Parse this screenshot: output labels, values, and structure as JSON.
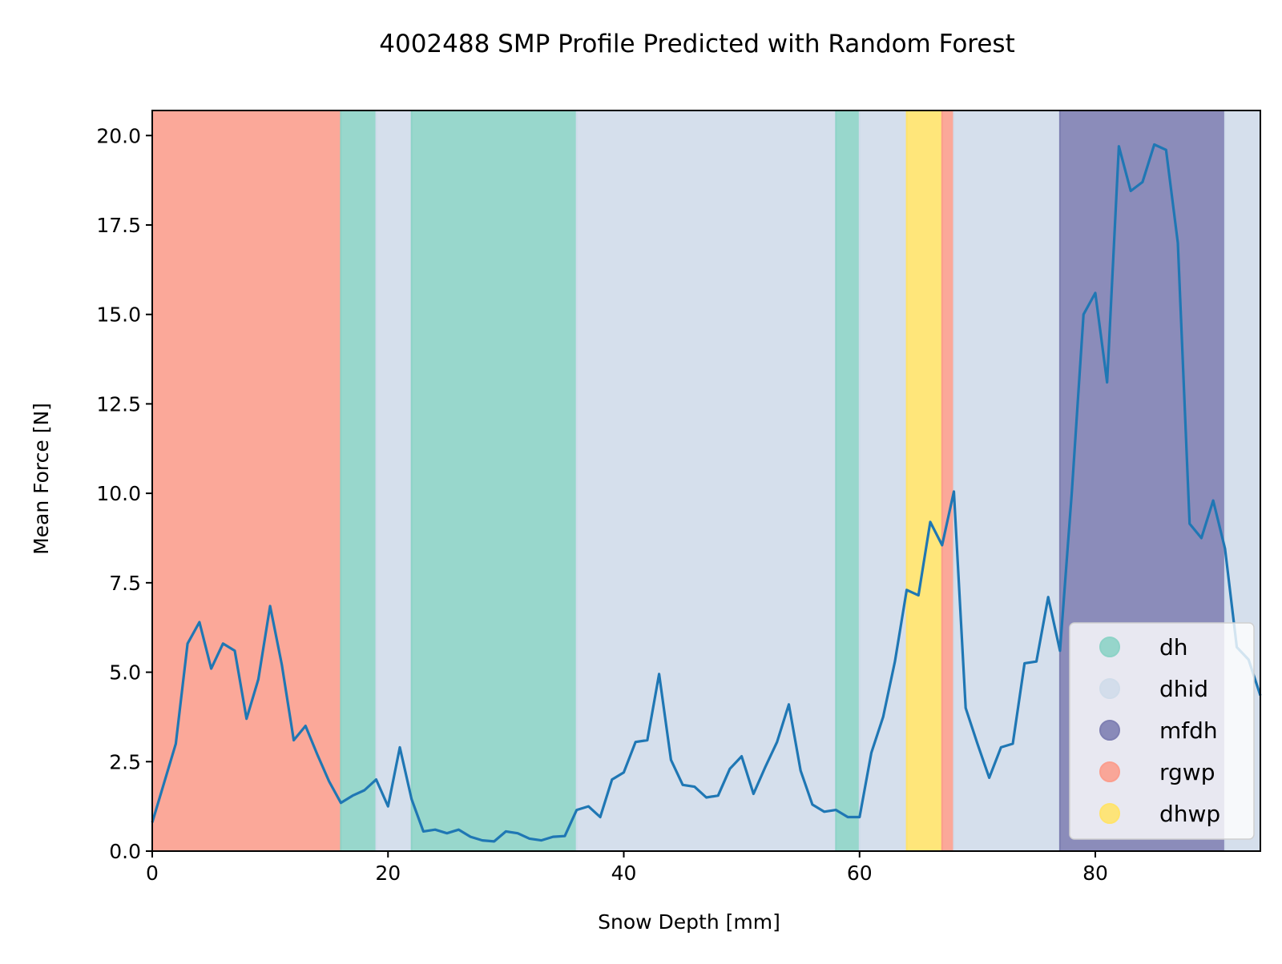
{
  "chart_data": {
    "type": "line",
    "title": "4002488 SMP Profile Predicted with Random Forest",
    "xlabel": "Snow Depth [mm]",
    "ylabel": "Mean Force [N]",
    "xlim": [
      0,
      94
    ],
    "ylim": [
      0,
      20.7
    ],
    "xticks": [
      0,
      20,
      40,
      60,
      80
    ],
    "yticks": [
      0.0,
      2.5,
      5.0,
      7.5,
      10.0,
      12.5,
      15.0,
      17.5,
      20.0
    ],
    "xtick_labels": [
      "0",
      "20",
      "40",
      "60",
      "80"
    ],
    "ytick_labels": [
      "0.0",
      "2.5",
      "5.0",
      "7.5",
      "10.0",
      "12.5",
      "15.0",
      "17.5",
      "20.0"
    ],
    "grid": false,
    "legend_position": "lower-right",
    "line_color": "#1f77b4",
    "classes": [
      {
        "name": "dh",
        "color": "#8dd3c7"
      },
      {
        "name": "dhid",
        "color": "#d0dcea"
      },
      {
        "name": "mfdh",
        "color": "#7e7fb2"
      },
      {
        "name": "rgwp",
        "color": "#fb9e8e"
      },
      {
        "name": "dhwp",
        "color": "#ffe36b"
      }
    ],
    "regions": [
      {
        "start": 0,
        "end": 16,
        "class": "rgwp"
      },
      {
        "start": 16,
        "end": 19,
        "class": "dh"
      },
      {
        "start": 19,
        "end": 22,
        "class": "dhid"
      },
      {
        "start": 22,
        "end": 36,
        "class": "dh"
      },
      {
        "start": 36,
        "end": 58,
        "class": "dhid"
      },
      {
        "start": 58,
        "end": 60,
        "class": "dh"
      },
      {
        "start": 60,
        "end": 64,
        "class": "dhid"
      },
      {
        "start": 64,
        "end": 67,
        "class": "dhwp"
      },
      {
        "start": 67,
        "end": 68,
        "class": "rgwp"
      },
      {
        "start": 68,
        "end": 77,
        "class": "dhid"
      },
      {
        "start": 77,
        "end": 91,
        "class": "mfdh"
      },
      {
        "start": 91,
        "end": 94,
        "class": "dhid"
      }
    ],
    "series": [
      {
        "x": [
          0,
          1,
          2,
          3,
          4,
          5,
          6,
          7,
          8,
          9,
          10,
          11,
          12,
          13,
          14,
          15,
          16,
          17,
          18,
          19,
          20,
          21,
          22,
          23,
          24,
          25,
          26,
          27,
          28,
          29,
          30,
          31,
          32,
          33,
          34,
          35,
          36,
          37,
          38,
          39,
          40,
          41,
          42,
          43,
          44,
          45,
          46,
          47,
          48,
          49,
          50,
          51,
          52,
          53,
          54,
          55,
          56,
          57,
          58,
          59,
          60,
          61,
          62,
          63,
          64,
          65,
          66,
          67,
          68,
          69,
          70,
          71,
          72,
          73,
          74,
          75,
          76,
          77,
          78,
          79,
          80,
          81,
          82,
          83,
          84,
          85,
          86,
          87,
          88,
          89,
          90,
          91,
          92,
          93,
          94
        ],
        "values": [
          0.8,
          1.9,
          3.0,
          5.8,
          6.4,
          5.1,
          5.8,
          5.6,
          3.7,
          4.8,
          6.85,
          5.2,
          3.1,
          3.5,
          2.7,
          1.95,
          1.35,
          1.55,
          1.7,
          2.0,
          1.25,
          2.9,
          1.45,
          0.55,
          0.6,
          0.5,
          0.6,
          0.4,
          0.3,
          0.27,
          0.55,
          0.5,
          0.35,
          0.3,
          0.4,
          0.42,
          1.15,
          1.25,
          0.95,
          2.0,
          2.2,
          3.05,
          3.1,
          4.95,
          2.55,
          1.85,
          1.8,
          1.5,
          1.55,
          2.3,
          2.65,
          1.6,
          2.35,
          3.05,
          4.1,
          2.25,
          1.3,
          1.1,
          1.15,
          0.95,
          0.95,
          2.75,
          3.75,
          5.3,
          7.3,
          7.15,
          9.2,
          8.55,
          10.05,
          4.0,
          3.0,
          2.05,
          2.9,
          3.0,
          5.25,
          5.3,
          7.1,
          5.6,
          10.0,
          15.0,
          15.6,
          13.1,
          19.7,
          18.45,
          18.7,
          19.75,
          19.6,
          17.0,
          9.15,
          8.75,
          9.8,
          8.45,
          5.7,
          5.35,
          4.35
        ]
      }
    ]
  }
}
